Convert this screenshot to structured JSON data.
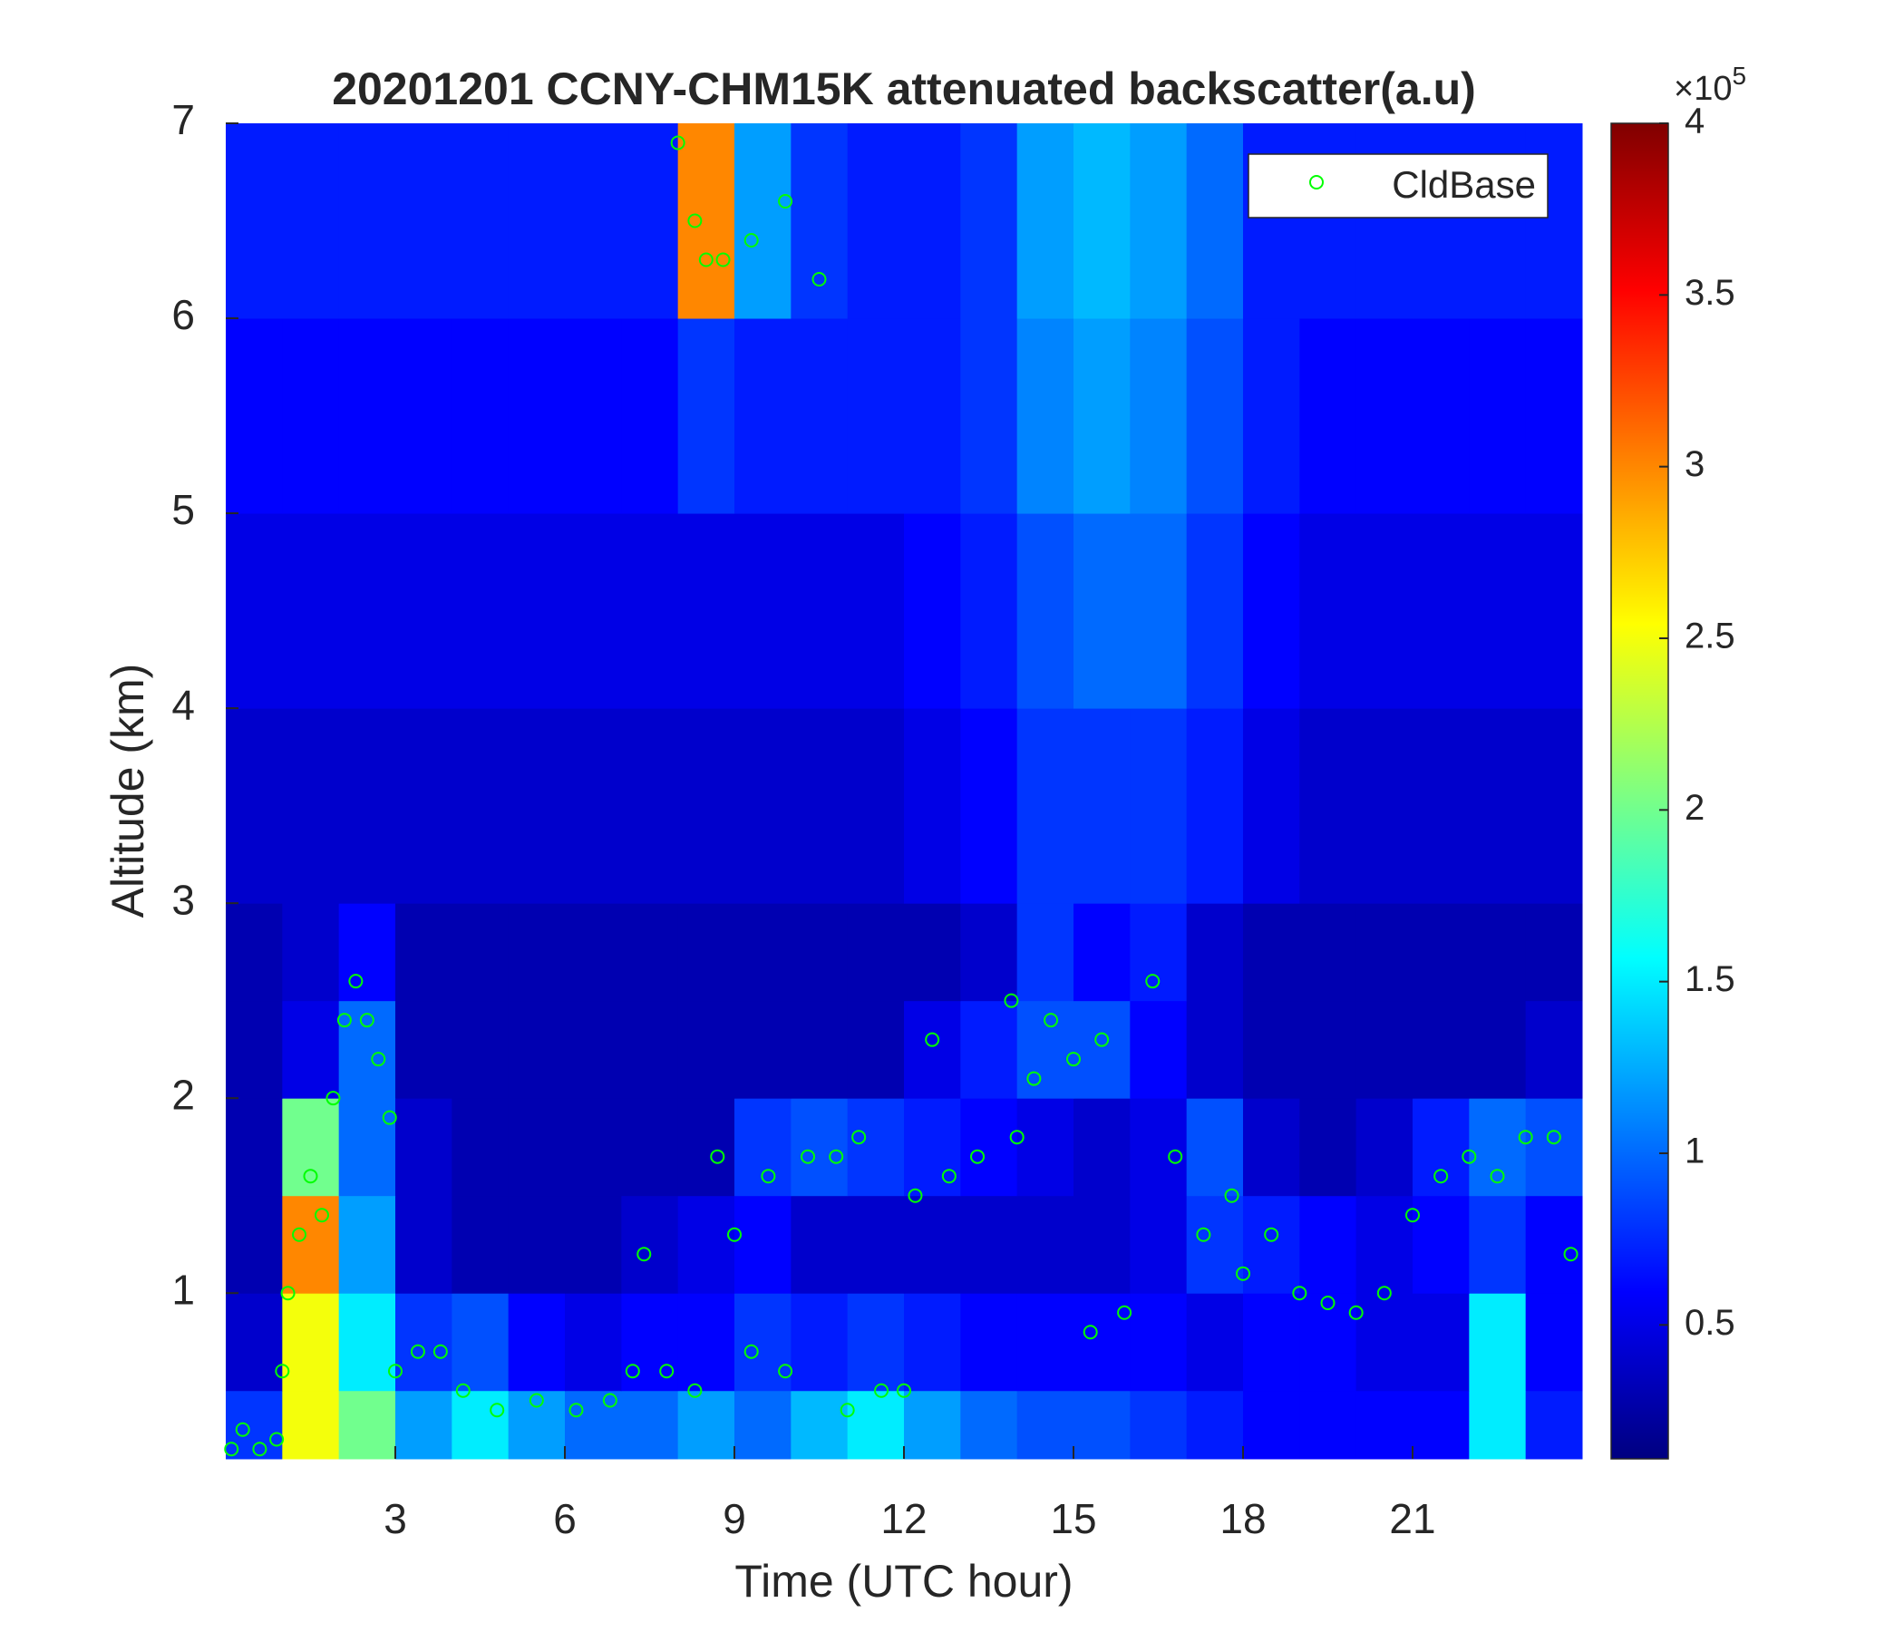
{
  "chart_data": {
    "type": "heatmap",
    "title": "20201201 CCNY-CHM15K attenuated backscatter(a.u)",
    "xlabel": "Time (UTC hour)",
    "ylabel": "Altitude (km)",
    "xlim": [
      0,
      24
    ],
    "ylim": [
      0.15,
      7
    ],
    "xticks": [
      3,
      6,
      9,
      12,
      15,
      18,
      21
    ],
    "yticks": [
      1,
      2,
      3,
      4,
      5,
      6,
      7
    ],
    "colormap": "jet",
    "clim": [
      0.11,
      4
    ],
    "cticks": [
      0.5,
      1,
      1.5,
      2,
      2.5,
      3,
      3.5,
      4
    ],
    "colorbar_multiplier": {
      "base": "×10",
      "exponent": "5"
    },
    "x_edges": [
      0,
      1,
      2,
      3,
      4,
      5,
      6,
      7,
      8,
      9,
      10,
      11,
      12,
      13,
      14,
      15,
      16,
      17,
      18,
      19,
      20,
      21,
      22,
      23,
      24
    ],
    "y_edges": [
      0.15,
      0.5,
      1,
      1.5,
      2,
      2.5,
      3,
      4,
      5,
      6,
      7
    ],
    "z": [
      [
        0.8,
        2.5,
        2.0,
        1.2,
        1.5,
        1.2,
        1.0,
        1.0,
        1.2,
        1.0,
        1.3,
        1.5,
        1.2,
        1.0,
        0.9,
        0.9,
        0.8,
        0.7,
        0.6,
        0.6,
        0.6,
        0.6,
        1.5,
        0.7
      ],
      [
        0.4,
        2.5,
        1.5,
        0.8,
        0.9,
        0.6,
        0.5,
        0.6,
        0.6,
        0.8,
        0.7,
        0.8,
        0.7,
        0.6,
        0.6,
        0.6,
        0.6,
        0.5,
        0.6,
        0.6,
        0.5,
        0.5,
        1.5,
        0.6
      ],
      [
        0.3,
        3.0,
        1.2,
        0.4,
        0.3,
        0.3,
        0.3,
        0.4,
        0.5,
        0.6,
        0.4,
        0.4,
        0.4,
        0.4,
        0.4,
        0.4,
        0.5,
        0.8,
        0.7,
        0.6,
        0.5,
        0.6,
        0.8,
        0.6
      ],
      [
        0.3,
        2.0,
        1.0,
        0.4,
        0.3,
        0.3,
        0.3,
        0.3,
        0.3,
        0.8,
        0.9,
        0.8,
        0.7,
        0.6,
        0.5,
        0.4,
        0.5,
        0.9,
        0.4,
        0.3,
        0.4,
        0.7,
        1.0,
        0.9
      ],
      [
        0.3,
        0.5,
        1.0,
        0.3,
        0.3,
        0.3,
        0.3,
        0.3,
        0.3,
        0.3,
        0.3,
        0.3,
        0.5,
        0.7,
        0.9,
        0.9,
        0.6,
        0.4,
        0.3,
        0.3,
        0.3,
        0.3,
        0.3,
        0.4
      ],
      [
        0.3,
        0.4,
        0.6,
        0.3,
        0.3,
        0.3,
        0.3,
        0.3,
        0.3,
        0.3,
        0.3,
        0.3,
        0.3,
        0.4,
        0.8,
        0.6,
        0.7,
        0.4,
        0.3,
        0.3,
        0.3,
        0.3,
        0.3,
        0.3
      ],
      [
        0.4,
        0.4,
        0.4,
        0.4,
        0.4,
        0.4,
        0.4,
        0.4,
        0.4,
        0.4,
        0.4,
        0.4,
        0.5,
        0.6,
        0.8,
        0.8,
        0.8,
        0.7,
        0.5,
        0.4,
        0.4,
        0.4,
        0.4,
        0.4
      ],
      [
        0.5,
        0.5,
        0.5,
        0.5,
        0.5,
        0.5,
        0.5,
        0.5,
        0.5,
        0.5,
        0.5,
        0.5,
        0.6,
        0.7,
        0.9,
        1.0,
        1.0,
        0.8,
        0.6,
        0.5,
        0.5,
        0.5,
        0.5,
        0.5
      ],
      [
        0.6,
        0.6,
        0.6,
        0.6,
        0.6,
        0.6,
        0.6,
        0.6,
        0.8,
        0.7,
        0.7,
        0.7,
        0.7,
        0.8,
        1.1,
        1.2,
        1.1,
        0.9,
        0.7,
        0.6,
        0.6,
        0.6,
        0.6,
        0.6
      ],
      [
        0.7,
        0.7,
        0.7,
        0.7,
        0.7,
        0.7,
        0.7,
        0.7,
        3.0,
        1.2,
        0.8,
        0.7,
        0.7,
        0.8,
        1.2,
        1.3,
        1.2,
        1.0,
        0.7,
        0.7,
        0.7,
        0.7,
        0.7,
        0.7
      ]
    ],
    "legend": "upper right",
    "series": [
      {
        "type": "scatter",
        "name": "CldBase",
        "color": "#00ff00",
        "x": [
          0.1,
          0.3,
          0.6,
          0.9,
          1.0,
          1.1,
          1.3,
          1.5,
          1.7,
          1.9,
          2.1,
          2.3,
          2.5,
          2.7,
          2.9,
          3.0,
          3.4,
          3.8,
          4.2,
          4.8,
          5.5,
          6.2,
          6.8,
          7.2,
          7.4,
          7.8,
          8.0,
          8.3,
          8.5,
          8.8,
          9.3,
          9.9,
          10.5,
          8.3,
          8.7,
          9.0,
          9.3,
          9.6,
          9.9,
          10.3,
          10.8,
          11.2,
          11.0,
          11.6,
          12.0,
          12.2,
          12.5,
          12.8,
          13.3,
          13.9,
          14.0,
          14.3,
          14.6,
          15.0,
          15.3,
          15.5,
          15.9,
          16.4,
          16.8,
          17.3,
          17.8,
          18.0,
          18.5,
          19.0,
          19.5,
          20.0,
          20.5,
          21.0,
          21.5,
          22.0,
          22.5,
          23.0,
          23.5,
          23.8
        ],
        "y": [
          0.2,
          0.3,
          0.2,
          0.25,
          0.6,
          1.0,
          1.3,
          1.6,
          1.4,
          2.0,
          2.4,
          2.6,
          2.4,
          2.2,
          1.9,
          0.6,
          0.7,
          0.7,
          0.5,
          0.4,
          0.45,
          0.4,
          0.45,
          0.6,
          1.2,
          0.6,
          6.9,
          6.5,
          6.3,
          6.3,
          6.4,
          6.6,
          6.2,
          0.5,
          1.7,
          1.3,
          0.7,
          1.6,
          0.6,
          1.7,
          1.7,
          1.8,
          0.4,
          0.5,
          0.5,
          1.5,
          2.3,
          1.6,
          1.7,
          2.5,
          1.8,
          2.1,
          2.4,
          2.2,
          0.8,
          2.3,
          0.9,
          2.6,
          1.7,
          1.3,
          1.5,
          1.1,
          1.3,
          1.0,
          0.95,
          0.9,
          1.0,
          1.4,
          1.6,
          1.7,
          1.6,
          1.8,
          1.8,
          1.2
        ]
      }
    ]
  }
}
